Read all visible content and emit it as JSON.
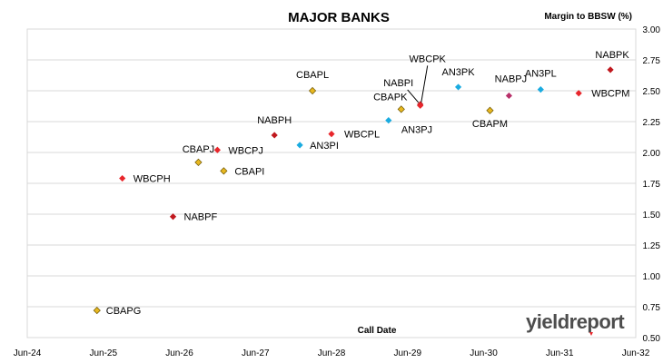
{
  "chart_data": {
    "type": "scatter",
    "title": "MAJOR BANKS",
    "ylabel": "Margin to BBSW (%)",
    "xlabel": "Call Date",
    "ylim": [
      0.5,
      3.0
    ],
    "yticks": [
      "0.50",
      "0.75",
      "1.00",
      "1.25",
      "1.50",
      "1.75",
      "2.00",
      "2.25",
      "2.50",
      "2.75",
      "3.00"
    ],
    "xticks": [
      "Jun-24",
      "Jun-25",
      "Jun-26",
      "Jun-27",
      "Jun-28",
      "Jun-29",
      "Jun-30",
      "Jun-31",
      "Jun-32"
    ],
    "grid": "horizontal",
    "legend": "none",
    "colors": {
      "CBA": "#e8b820",
      "WBC": "#e8262b",
      "NAB": "#c0181e",
      "ANZ": "#1aabe0",
      "NABJ": "#b8306a"
    },
    "points": [
      {
        "name": "CBAPG",
        "x": "2025-05",
        "y": 0.72,
        "color": "CBA"
      },
      {
        "name": "WBCPH",
        "x": "2025-09",
        "y": 1.79,
        "color": "WBC"
      },
      {
        "name": "NABPF",
        "x": "2026-05",
        "y": 1.48,
        "color": "NAB"
      },
      {
        "name": "CBAPJ",
        "x": "2026-09",
        "y": 1.92,
        "color": "CBA"
      },
      {
        "name": "WBCPJ",
        "x": "2026-12",
        "y": 2.02,
        "color": "WBC"
      },
      {
        "name": "CBAPI",
        "x": "2027-01",
        "y": 1.85,
        "color": "CBA"
      },
      {
        "name": "NABPH",
        "x": "2027-09",
        "y": 2.14,
        "color": "NAB"
      },
      {
        "name": "AN3PI",
        "x": "2028-01",
        "y": 2.06,
        "color": "ANZ"
      },
      {
        "name": "CBAPL",
        "x": "2028-03",
        "y": 2.5,
        "color": "CBA"
      },
      {
        "name": "WBCPL",
        "x": "2028-06",
        "y": 2.15,
        "color": "WBC"
      },
      {
        "name": "CBAPK",
        "x": "2029-05",
        "y": 2.35,
        "color": "CBA"
      },
      {
        "name": "AN3PJ",
        "x": "2029-03",
        "y": 2.26,
        "color": "ANZ"
      },
      {
        "name": "NABPI",
        "x": "2029-08",
        "y": 2.39,
        "color": "NAB"
      },
      {
        "name": "WBCPK",
        "x": "2029-08",
        "y": 2.38,
        "color": "WBC"
      },
      {
        "name": "AN3PK",
        "x": "2030-02",
        "y": 2.53,
        "color": "ANZ"
      },
      {
        "name": "CBAPM",
        "x": "2030-07",
        "y": 2.34,
        "color": "CBA"
      },
      {
        "name": "NABPJ",
        "x": "2030-10",
        "y": 2.46,
        "color": "NABJ"
      },
      {
        "name": "AN3PL",
        "x": "2031-03",
        "y": 2.51,
        "color": "ANZ"
      },
      {
        "name": "WBCPM",
        "x": "2031-09",
        "y": 2.48,
        "color": "WBC"
      },
      {
        "name": "NABPK",
        "x": "2032-02",
        "y": 2.67,
        "color": "NAB"
      }
    ]
  },
  "logo": {
    "text": "yieldreport"
  }
}
